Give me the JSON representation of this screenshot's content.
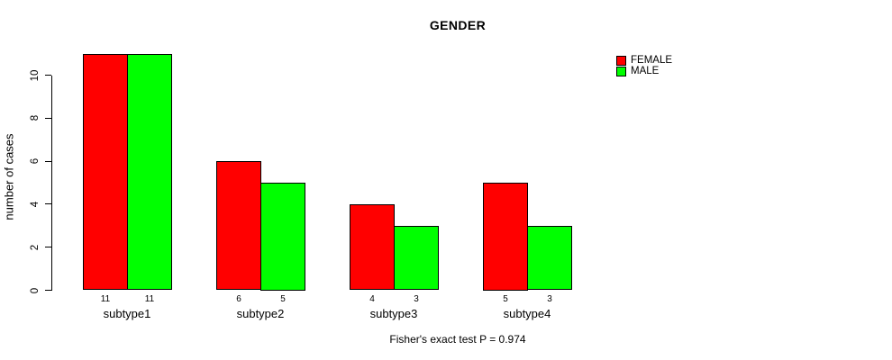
{
  "chart_data": {
    "type": "bar",
    "title": "GENDER",
    "xlabel": "",
    "ylabel": "number of cases",
    "categories": [
      "subtype1",
      "subtype2",
      "subtype3",
      "subtype4"
    ],
    "series": [
      {
        "name": "FEMALE",
        "color": "#ff0000",
        "values": [
          11,
          6,
          4,
          5
        ]
      },
      {
        "name": "MALE",
        "color": "#00ff00",
        "values": [
          11,
          5,
          3,
          3
        ]
      }
    ],
    "yticks": [
      0,
      2,
      4,
      6,
      8,
      10
    ],
    "ylim": [
      0,
      11
    ],
    "grid": false,
    "legend_position": "top-right",
    "bar_value_labels_shown": true,
    "annotation": "Fisher's exact test P = 0.974"
  },
  "legend": {
    "items": [
      {
        "label": "FEMALE",
        "color": "#ff0000"
      },
      {
        "label": "MALE",
        "color": "#00ff00"
      }
    ]
  }
}
